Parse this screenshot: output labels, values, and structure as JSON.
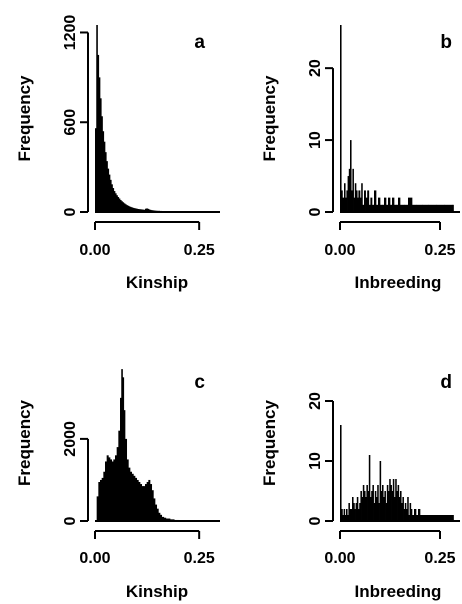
{
  "chart_data": [
    {
      "type": "histogram",
      "panel_label": "a",
      "xlabel": "Kinship",
      "ylabel": "Frequency",
      "xlim": [
        0,
        0.3
      ],
      "ylim": [
        0,
        1250
      ],
      "xticks": [
        0,
        0.25
      ],
      "xtick_labels": [
        "0.00",
        "0.25"
      ],
      "yticks": [
        0,
        600,
        1200
      ],
      "ytick_labels": [
        "0",
        "600",
        "1200"
      ],
      "bins": [
        {
          "x": 0.0,
          "count": 560
        },
        {
          "x": 0.003,
          "count": 1250
        },
        {
          "x": 0.006,
          "count": 1050
        },
        {
          "x": 0.009,
          "count": 900
        },
        {
          "x": 0.012,
          "count": 760
        },
        {
          "x": 0.015,
          "count": 640
        },
        {
          "x": 0.018,
          "count": 540
        },
        {
          "x": 0.021,
          "count": 470
        },
        {
          "x": 0.024,
          "count": 400
        },
        {
          "x": 0.027,
          "count": 340
        },
        {
          "x": 0.03,
          "count": 290
        },
        {
          "x": 0.033,
          "count": 250
        },
        {
          "x": 0.036,
          "count": 215
        },
        {
          "x": 0.039,
          "count": 185
        },
        {
          "x": 0.042,
          "count": 160
        },
        {
          "x": 0.045,
          "count": 140
        },
        {
          "x": 0.048,
          "count": 125
        },
        {
          "x": 0.051,
          "count": 112
        },
        {
          "x": 0.054,
          "count": 100
        },
        {
          "x": 0.057,
          "count": 90
        },
        {
          "x": 0.06,
          "count": 80
        },
        {
          "x": 0.063,
          "count": 72
        },
        {
          "x": 0.066,
          "count": 65
        },
        {
          "x": 0.069,
          "count": 58
        },
        {
          "x": 0.072,
          "count": 52
        },
        {
          "x": 0.075,
          "count": 46
        },
        {
          "x": 0.078,
          "count": 42
        },
        {
          "x": 0.081,
          "count": 38
        },
        {
          "x": 0.084,
          "count": 34
        },
        {
          "x": 0.087,
          "count": 31
        },
        {
          "x": 0.09,
          "count": 28
        },
        {
          "x": 0.093,
          "count": 26
        },
        {
          "x": 0.096,
          "count": 24
        },
        {
          "x": 0.099,
          "count": 22
        },
        {
          "x": 0.102,
          "count": 20
        },
        {
          "x": 0.105,
          "count": 19
        },
        {
          "x": 0.108,
          "count": 18
        },
        {
          "x": 0.111,
          "count": 17
        },
        {
          "x": 0.114,
          "count": 16
        },
        {
          "x": 0.117,
          "count": 15
        },
        {
          "x": 0.12,
          "count": 22
        },
        {
          "x": 0.123,
          "count": 24
        },
        {
          "x": 0.126,
          "count": 21
        },
        {
          "x": 0.129,
          "count": 17
        },
        {
          "x": 0.132,
          "count": 14
        },
        {
          "x": 0.135,
          "count": 12
        },
        {
          "x": 0.138,
          "count": 11
        },
        {
          "x": 0.141,
          "count": 10
        },
        {
          "x": 0.144,
          "count": 9
        },
        {
          "x": 0.147,
          "count": 8
        },
        {
          "x": 0.15,
          "count": 8
        },
        {
          "x": 0.155,
          "count": 7
        },
        {
          "x": 0.16,
          "count": 6
        },
        {
          "x": 0.165,
          "count": 6
        },
        {
          "x": 0.17,
          "count": 5
        },
        {
          "x": 0.175,
          "count": 5
        },
        {
          "x": 0.18,
          "count": 4
        },
        {
          "x": 0.185,
          "count": 4
        },
        {
          "x": 0.19,
          "count": 3
        },
        {
          "x": 0.195,
          "count": 3
        },
        {
          "x": 0.2,
          "count": 3
        },
        {
          "x": 0.21,
          "count": 2
        },
        {
          "x": 0.22,
          "count": 2
        },
        {
          "x": 0.23,
          "count": 2
        },
        {
          "x": 0.24,
          "count": 2
        },
        {
          "x": 0.25,
          "count": 1
        },
        {
          "x": 0.26,
          "count": 1
        },
        {
          "x": 0.27,
          "count": 1
        },
        {
          "x": 0.28,
          "count": 1
        },
        {
          "x": 0.29,
          "count": 1
        }
      ]
    },
    {
      "type": "histogram",
      "panel_label": "b",
      "xlabel": "Inbreeding",
      "ylabel": "Frequency",
      "xlim": [
        0,
        0.3
      ],
      "ylim": [
        0,
        26
      ],
      "xticks": [
        0,
        0.25
      ],
      "xtick_labels": [
        "0.00",
        "0.25"
      ],
      "yticks": [
        0,
        10,
        20
      ],
      "ytick_labels": [
        "0",
        "10",
        "20"
      ],
      "bins": [
        {
          "x": 0.0,
          "count": 26
        },
        {
          "x": 0.003,
          "count": 3
        },
        {
          "x": 0.006,
          "count": 2
        },
        {
          "x": 0.01,
          "count": 4
        },
        {
          "x": 0.013,
          "count": 2
        },
        {
          "x": 0.016,
          "count": 3
        },
        {
          "x": 0.019,
          "count": 5
        },
        {
          "x": 0.022,
          "count": 6
        },
        {
          "x": 0.025,
          "count": 10
        },
        {
          "x": 0.028,
          "count": 3
        },
        {
          "x": 0.031,
          "count": 6
        },
        {
          "x": 0.034,
          "count": 2
        },
        {
          "x": 0.037,
          "count": 4
        },
        {
          "x": 0.04,
          "count": 3
        },
        {
          "x": 0.043,
          "count": 2
        },
        {
          "x": 0.046,
          "count": 3
        },
        {
          "x": 0.05,
          "count": 2
        },
        {
          "x": 0.053,
          "count": 4
        },
        {
          "x": 0.056,
          "count": 1
        },
        {
          "x": 0.06,
          "count": 3
        },
        {
          "x": 0.064,
          "count": 2
        },
        {
          "x": 0.068,
          "count": 3
        },
        {
          "x": 0.072,
          "count": 1
        },
        {
          "x": 0.076,
          "count": 2
        },
        {
          "x": 0.08,
          "count": 1
        },
        {
          "x": 0.085,
          "count": 3
        },
        {
          "x": 0.09,
          "count": 1
        },
        {
          "x": 0.095,
          "count": 2
        },
        {
          "x": 0.1,
          "count": 1
        },
        {
          "x": 0.105,
          "count": 1
        },
        {
          "x": 0.11,
          "count": 2
        },
        {
          "x": 0.115,
          "count": 1
        },
        {
          "x": 0.12,
          "count": 2
        },
        {
          "x": 0.125,
          "count": 1
        },
        {
          "x": 0.13,
          "count": 2
        },
        {
          "x": 0.135,
          "count": 1
        },
        {
          "x": 0.14,
          "count": 1
        },
        {
          "x": 0.145,
          "count": 2
        },
        {
          "x": 0.15,
          "count": 1
        },
        {
          "x": 0.16,
          "count": 1
        },
        {
          "x": 0.17,
          "count": 2
        },
        {
          "x": 0.18,
          "count": 1
        },
        {
          "x": 0.19,
          "count": 1
        },
        {
          "x": 0.205,
          "count": 1
        },
        {
          "x": 0.22,
          "count": 1
        },
        {
          "x": 0.24,
          "count": 1
        },
        {
          "x": 0.26,
          "count": 1
        },
        {
          "x": 0.28,
          "count": 1
        }
      ]
    },
    {
      "type": "histogram",
      "panel_label": "c",
      "xlabel": "Kinship",
      "ylabel": "Frequency",
      "xlim": [
        0,
        0.3
      ],
      "ylim": [
        0,
        3800
      ],
      "xticks": [
        0,
        0.25
      ],
      "xtick_labels": [
        "0.00",
        "0.25"
      ],
      "yticks": [
        0,
        2000
      ],
      "ytick_labels": [
        "0",
        "2000"
      ],
      "bins": [
        {
          "x": 0.004,
          "count": 600
        },
        {
          "x": 0.008,
          "count": 950
        },
        {
          "x": 0.012,
          "count": 1000
        },
        {
          "x": 0.016,
          "count": 1050
        },
        {
          "x": 0.02,
          "count": 1200
        },
        {
          "x": 0.024,
          "count": 1450
        },
        {
          "x": 0.028,
          "count": 1600
        },
        {
          "x": 0.032,
          "count": 1550
        },
        {
          "x": 0.036,
          "count": 1500
        },
        {
          "x": 0.04,
          "count": 1450
        },
        {
          "x": 0.044,
          "count": 1500
        },
        {
          "x": 0.048,
          "count": 1600
        },
        {
          "x": 0.052,
          "count": 1800
        },
        {
          "x": 0.056,
          "count": 2200
        },
        {
          "x": 0.06,
          "count": 3000
        },
        {
          "x": 0.063,
          "count": 3700
        },
        {
          "x": 0.066,
          "count": 3500
        },
        {
          "x": 0.069,
          "count": 2700
        },
        {
          "x": 0.072,
          "count": 2000
        },
        {
          "x": 0.076,
          "count": 1500
        },
        {
          "x": 0.08,
          "count": 1300
        },
        {
          "x": 0.084,
          "count": 1200
        },
        {
          "x": 0.088,
          "count": 1150
        },
        {
          "x": 0.092,
          "count": 1100
        },
        {
          "x": 0.096,
          "count": 1050
        },
        {
          "x": 0.1,
          "count": 1000
        },
        {
          "x": 0.104,
          "count": 950
        },
        {
          "x": 0.108,
          "count": 900
        },
        {
          "x": 0.112,
          "count": 850
        },
        {
          "x": 0.116,
          "count": 850
        },
        {
          "x": 0.12,
          "count": 900
        },
        {
          "x": 0.124,
          "count": 950
        },
        {
          "x": 0.128,
          "count": 1000
        },
        {
          "x": 0.132,
          "count": 900
        },
        {
          "x": 0.136,
          "count": 750
        },
        {
          "x": 0.14,
          "count": 550
        },
        {
          "x": 0.144,
          "count": 400
        },
        {
          "x": 0.148,
          "count": 300
        },
        {
          "x": 0.152,
          "count": 200
        },
        {
          "x": 0.156,
          "count": 150
        },
        {
          "x": 0.16,
          "count": 100
        },
        {
          "x": 0.165,
          "count": 80
        },
        {
          "x": 0.17,
          "count": 60
        },
        {
          "x": 0.18,
          "count": 40
        },
        {
          "x": 0.19,
          "count": 25
        },
        {
          "x": 0.2,
          "count": 15
        },
        {
          "x": 0.21,
          "count": 10
        },
        {
          "x": 0.22,
          "count": 8
        },
        {
          "x": 0.23,
          "count": 5
        },
        {
          "x": 0.24,
          "count": 4
        },
        {
          "x": 0.25,
          "count": 3
        },
        {
          "x": 0.26,
          "count": 2
        },
        {
          "x": 0.27,
          "count": 2
        },
        {
          "x": 0.28,
          "count": 1
        },
        {
          "x": 0.29,
          "count": 1
        }
      ]
    },
    {
      "type": "histogram",
      "panel_label": "d",
      "xlabel": "Inbreeding",
      "ylabel": "Frequency",
      "xlim": [
        0,
        0.3
      ],
      "ylim": [
        0,
        26
      ],
      "xticks": [
        0,
        0.25
      ],
      "xtick_labels": [
        "0.00",
        "0.25"
      ],
      "yticks": [
        0,
        10,
        20
      ],
      "ytick_labels": [
        "0",
        "10",
        "20"
      ],
      "bins": [
        {
          "x": 0.0,
          "count": 16
        },
        {
          "x": 0.003,
          "count": 2
        },
        {
          "x": 0.006,
          "count": 1
        },
        {
          "x": 0.009,
          "count": 2
        },
        {
          "x": 0.012,
          "count": 1
        },
        {
          "x": 0.015,
          "count": 2
        },
        {
          "x": 0.018,
          "count": 1
        },
        {
          "x": 0.021,
          "count": 3
        },
        {
          "x": 0.024,
          "count": 2
        },
        {
          "x": 0.027,
          "count": 2
        },
        {
          "x": 0.03,
          "count": 4
        },
        {
          "x": 0.033,
          "count": 3
        },
        {
          "x": 0.036,
          "count": 2
        },
        {
          "x": 0.039,
          "count": 3
        },
        {
          "x": 0.042,
          "count": 4
        },
        {
          "x": 0.045,
          "count": 2
        },
        {
          "x": 0.048,
          "count": 3
        },
        {
          "x": 0.051,
          "count": 5
        },
        {
          "x": 0.054,
          "count": 4
        },
        {
          "x": 0.057,
          "count": 6
        },
        {
          "x": 0.06,
          "count": 5
        },
        {
          "x": 0.063,
          "count": 4
        },
        {
          "x": 0.066,
          "count": 6
        },
        {
          "x": 0.069,
          "count": 5
        },
        {
          "x": 0.072,
          "count": 11
        },
        {
          "x": 0.075,
          "count": 4
        },
        {
          "x": 0.078,
          "count": 5
        },
        {
          "x": 0.081,
          "count": 6
        },
        {
          "x": 0.084,
          "count": 3
        },
        {
          "x": 0.087,
          "count": 5
        },
        {
          "x": 0.09,
          "count": 4
        },
        {
          "x": 0.093,
          "count": 6
        },
        {
          "x": 0.096,
          "count": 3
        },
        {
          "x": 0.099,
          "count": 10
        },
        {
          "x": 0.102,
          "count": 5
        },
        {
          "x": 0.105,
          "count": 6
        },
        {
          "x": 0.108,
          "count": 4
        },
        {
          "x": 0.111,
          "count": 5
        },
        {
          "x": 0.114,
          "count": 3
        },
        {
          "x": 0.117,
          "count": 6
        },
        {
          "x": 0.12,
          "count": 5
        },
        {
          "x": 0.123,
          "count": 7
        },
        {
          "x": 0.126,
          "count": 6
        },
        {
          "x": 0.129,
          "count": 5
        },
        {
          "x": 0.132,
          "count": 7
        },
        {
          "x": 0.135,
          "count": 4
        },
        {
          "x": 0.138,
          "count": 7
        },
        {
          "x": 0.141,
          "count": 5
        },
        {
          "x": 0.144,
          "count": 6
        },
        {
          "x": 0.147,
          "count": 4
        },
        {
          "x": 0.15,
          "count": 5
        },
        {
          "x": 0.153,
          "count": 3
        },
        {
          "x": 0.156,
          "count": 4
        },
        {
          "x": 0.159,
          "count": 2
        },
        {
          "x": 0.162,
          "count": 3
        },
        {
          "x": 0.165,
          "count": 2
        },
        {
          "x": 0.168,
          "count": 4
        },
        {
          "x": 0.171,
          "count": 1
        },
        {
          "x": 0.174,
          "count": 3
        },
        {
          "x": 0.177,
          "count": 2
        },
        {
          "x": 0.18,
          "count": 1
        },
        {
          "x": 0.185,
          "count": 2
        },
        {
          "x": 0.19,
          "count": 1
        },
        {
          "x": 0.195,
          "count": 2
        },
        {
          "x": 0.2,
          "count": 1
        },
        {
          "x": 0.21,
          "count": 1
        },
        {
          "x": 0.22,
          "count": 1
        },
        {
          "x": 0.23,
          "count": 1
        },
        {
          "x": 0.245,
          "count": 1
        },
        {
          "x": 0.26,
          "count": 1
        },
        {
          "x": 0.28,
          "count": 1
        }
      ]
    }
  ]
}
